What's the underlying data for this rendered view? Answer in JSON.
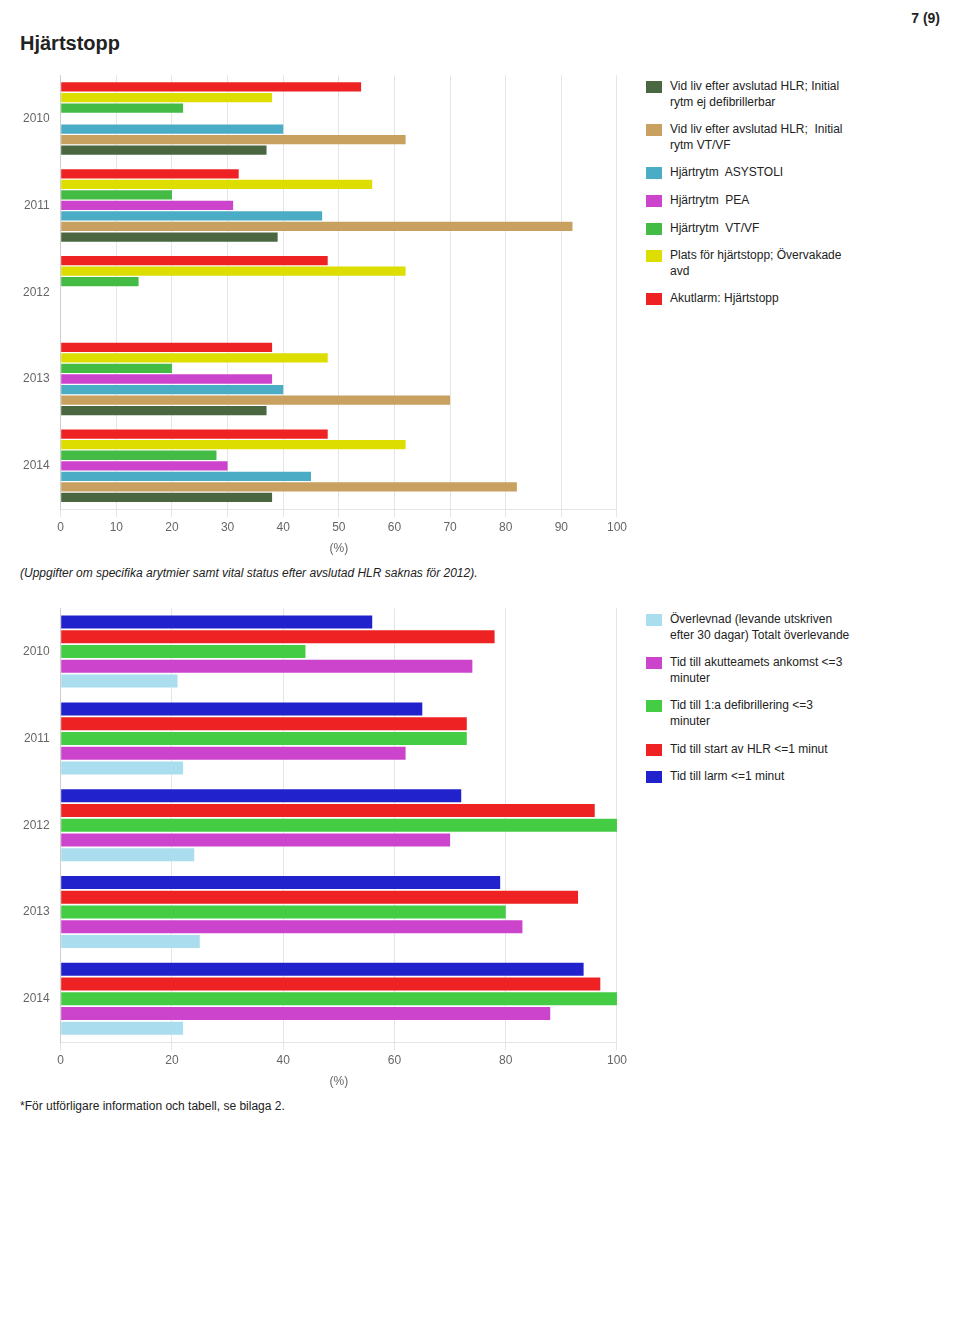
{
  "chart_data": [
    {
      "type": "bar",
      "orientation": "horizontal",
      "title": "Hjärtstopp",
      "annotations": [
        "7 (9)",
        "(Uppgifter om specifika arytmier samt vital status efter avslutad HLR saknas för 2012)."
      ],
      "categories": [
        "2014",
        "2013",
        "2012",
        "2011",
        "2010"
      ],
      "series": [
        {
          "name": "Vid liv efter avslutad HLR; Initial\nrytm ej defibrillerbar",
          "color": "#4a6741",
          "values": [
            38,
            37,
            0,
            39,
            37
          ]
        },
        {
          "name": "Vid liv efter avslutad HLR;  Initial\nrytm VT/VF",
          "color": "#c8a060",
          "values": [
            82,
            70,
            0,
            92,
            62
          ]
        },
        {
          "name": "Hjärtrytm  ASYSTOLI",
          "color": "#4bacc6",
          "values": [
            45,
            40,
            0,
            47,
            40
          ]
        },
        {
          "name": "Hjärtrytm  PEA",
          "color": "#cc44cc",
          "values": [
            30,
            38,
            0,
            31,
            0
          ]
        },
        {
          "name": "Hjärtrytm  VT/VF",
          "color": "#44bb44",
          "values": [
            28,
            20,
            14,
            20,
            22
          ]
        },
        {
          "name": "Plats för hjärtstopp; Övervakade\navd",
          "color": "#dddd00",
          "values": [
            62,
            48,
            62,
            56,
            38
          ]
        },
        {
          "name": "Akutlarm: Hjärtstopp",
          "color": "#ee2222",
          "values": [
            48,
            38,
            48,
            32,
            54
          ]
        }
      ],
      "xlabel": "(%)",
      "xlim": [
        0,
        100
      ],
      "xticks": [
        0,
        10,
        20,
        30,
        40,
        50,
        60,
        70,
        80,
        90,
        100
      ],
      "grid": true,
      "legend": "right"
    },
    {
      "type": "bar",
      "orientation": "horizontal",
      "annotations": [
        "*För utförligare information och tabell, se bilaga 2."
      ],
      "categories": [
        "2014",
        "2013",
        "2012",
        "2011",
        "2010"
      ],
      "series": [
        {
          "name": "Överlevnad (levande utskriven\nefter 30 dagar) Totalt överlevande",
          "color": "#aaddee",
          "values": [
            22,
            25,
            24,
            22,
            21
          ]
        },
        {
          "name": "Tid till akutteamets ankomst <=3\nminuter",
          "color": "#cc44cc",
          "values": [
            88,
            83,
            70,
            62,
            74
          ]
        },
        {
          "name": "Tid till 1:a defibrillering <=3\nminuter",
          "color": "#44cc44",
          "values": [
            100,
            80,
            100,
            73,
            44
          ]
        },
        {
          "name": "Tid till start av HLR <=1 minut",
          "color": "#ee2222",
          "values": [
            97,
            93,
            96,
            73,
            78
          ]
        },
        {
          "name": "Tid till larm <=1 minut",
          "color": "#2222cc",
          "values": [
            94,
            79,
            72,
            65,
            56
          ]
        }
      ],
      "xlabel": "(%)",
      "xlim": [
        0,
        100
      ],
      "xticks": [
        0,
        20,
        40,
        60,
        80,
        100
      ],
      "grid": true,
      "legend": "right"
    }
  ]
}
